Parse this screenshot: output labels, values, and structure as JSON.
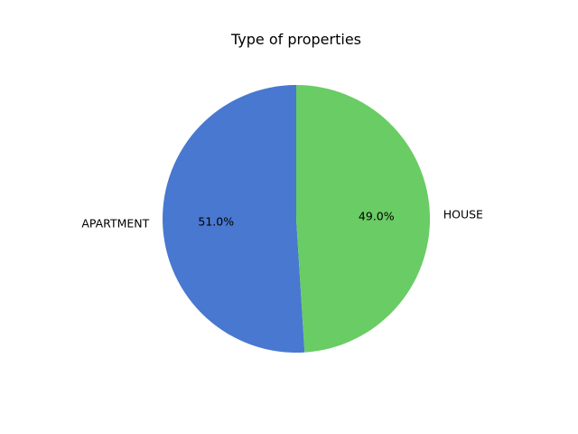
{
  "chart_data": {
    "type": "pie",
    "title": "Type of properties",
    "categories": [
      "APARTMENT",
      "HOUSE"
    ],
    "values": [
      51.0,
      49.0
    ],
    "percent_labels": [
      "51.0%",
      "49.0%"
    ],
    "colors": [
      "#4878d0",
      "#6acc64"
    ],
    "start_angle_deg": 90,
    "direction": "counterclockwise",
    "legend": "none"
  }
}
